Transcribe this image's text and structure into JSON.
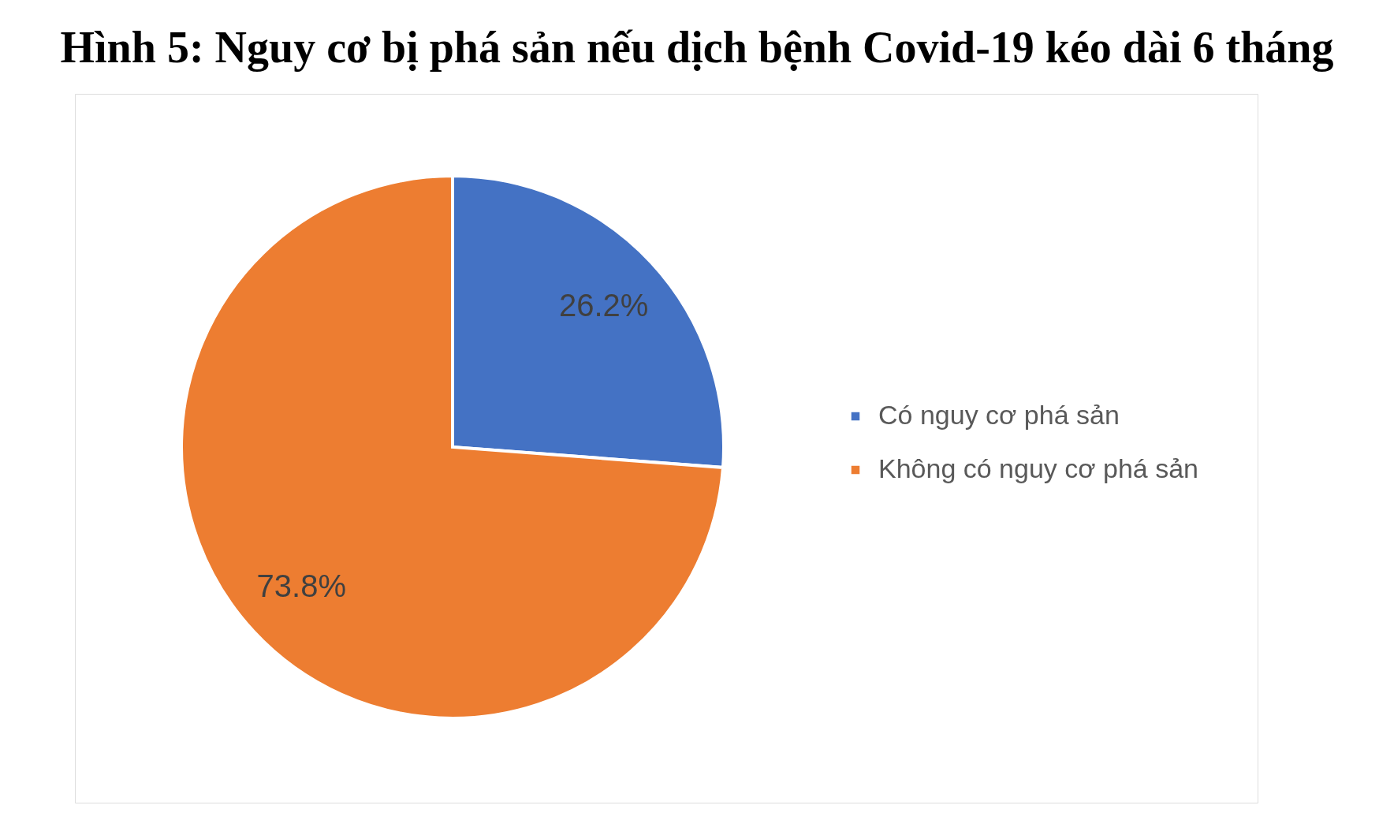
{
  "chart_data": {
    "type": "pie",
    "title": "Hình 5: Nguy cơ bị phá sản nếu dịch bệnh Covid-19 kéo dài 6 tháng",
    "categories": [
      "Có nguy cơ phá sản",
      "Không có nguy cơ phá sản"
    ],
    "values": [
      26.2,
      73.8
    ],
    "colors": [
      "#4472c4",
      "#ed7d31"
    ],
    "value_labels": [
      "26.2%",
      "73.8%"
    ],
    "legend": "right"
  }
}
